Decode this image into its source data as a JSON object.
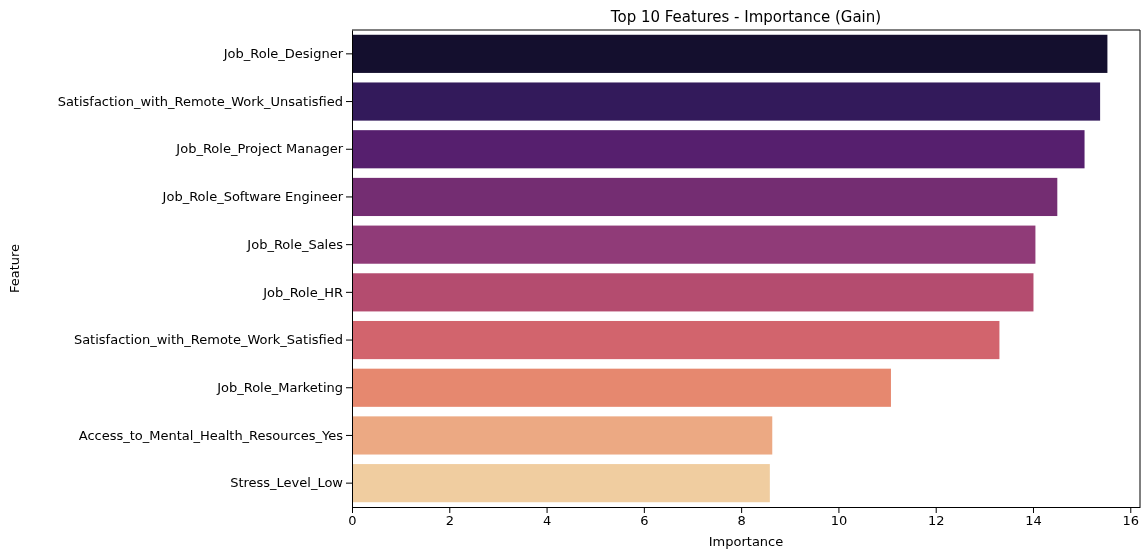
{
  "chart_data": {
    "type": "bar",
    "orientation": "horizontal",
    "title": "Top 10 Features - Importance (Gain)",
    "xlabel": "Importance",
    "ylabel": "Feature",
    "categories": [
      "Job_Role_Designer",
      "Satisfaction_with_Remote_Work_Unsatisfied",
      "Job_Role_Project Manager",
      "Job_Role_Software Engineer",
      "Job_Role_Sales",
      "Job_Role_HR",
      "Satisfaction_with_Remote_Work_Satisfied",
      "Job_Role_Marketing",
      "Access_to_Mental_Health_Resources_Yes",
      "Stress_Level_Low"
    ],
    "values": [
      15.53,
      15.38,
      15.06,
      14.5,
      14.05,
      14.01,
      13.31,
      11.08,
      8.64,
      8.59
    ],
    "colors": [
      "#140f2e",
      "#331a5b",
      "#561f6e",
      "#742d72",
      "#903b78",
      "#b44c6f",
      "#d2646d",
      "#e6886f",
      "#eca983",
      "#f0cda0"
    ],
    "xlim": [
      0,
      16.2
    ],
    "xticks": [
      0,
      2,
      4,
      6,
      8,
      10,
      12,
      14,
      16
    ],
    "grid": false
  }
}
